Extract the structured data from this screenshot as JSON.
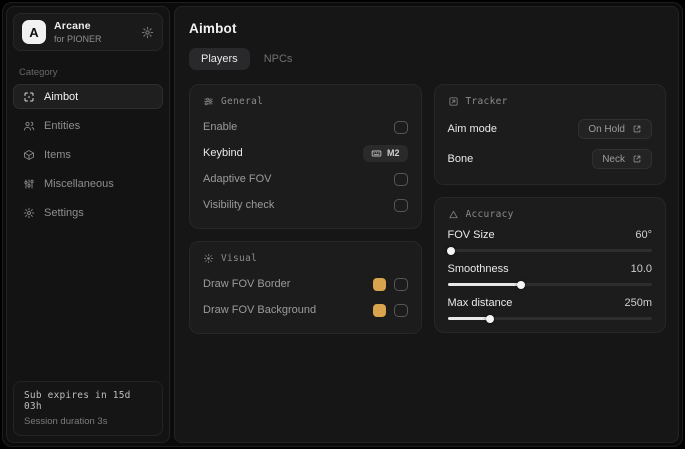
{
  "app": {
    "name": "Arcane",
    "tagline": "for PIONER",
    "logo_letter": "A"
  },
  "sidebar": {
    "category_label": "Category",
    "items": [
      {
        "label": "Aimbot",
        "icon": "crosshair-icon",
        "active": true
      },
      {
        "label": "Entities",
        "icon": "users-icon",
        "active": false
      },
      {
        "label": "Items",
        "icon": "package-icon",
        "active": false
      },
      {
        "label": "Miscellaneous",
        "icon": "sliders-icon",
        "active": false
      },
      {
        "label": "Settings",
        "icon": "gear-icon",
        "active": false
      }
    ],
    "footer": {
      "expiry": "Sub expires in 15d 03h",
      "session": "Session duration 3s"
    }
  },
  "main": {
    "title": "Aimbot",
    "tabs": [
      {
        "label": "Players",
        "active": true
      },
      {
        "label": "NPCs",
        "active": false
      }
    ],
    "general": {
      "title": "General",
      "rows": [
        {
          "label": "Enable",
          "control": "checkbox",
          "checked": false
        },
        {
          "label": "Keybind",
          "control": "keybind",
          "value": "M2"
        },
        {
          "label": "Adaptive FOV",
          "control": "checkbox",
          "checked": false
        },
        {
          "label": "Visibility check",
          "control": "checkbox",
          "checked": false
        }
      ]
    },
    "visual": {
      "title": "Visual",
      "rows": [
        {
          "label": "Draw FOV Border",
          "color": "#d8a54e",
          "checked": false
        },
        {
          "label": "Draw FOV Background",
          "color": "#d8a54e",
          "checked": false
        }
      ]
    },
    "tracker": {
      "title": "Tracker",
      "rows": [
        {
          "label": "Aim mode",
          "value": "On Hold"
        },
        {
          "label": "Bone",
          "value": "Neck"
        }
      ]
    },
    "accuracy": {
      "title": "Accuracy",
      "sliders": [
        {
          "label": "FOV Size",
          "value": "60°",
          "percent": 1.5
        },
        {
          "label": "Smoothness",
          "value": "10.0",
          "percent": 36
        },
        {
          "label": "Max distance",
          "value": "250m",
          "percent": 21
        }
      ]
    }
  }
}
